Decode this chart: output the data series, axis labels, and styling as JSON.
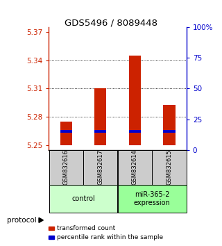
{
  "title": "GDS5496 / 8089448",
  "samples": [
    "GSM832616",
    "GSM832617",
    "GSM832614",
    "GSM832615"
  ],
  "red_values": [
    5.275,
    5.31,
    5.345,
    5.293
  ],
  "blue_values": [
    5.265,
    5.265,
    5.265,
    5.265
  ],
  "baseline": 5.25,
  "ylim_left": [
    5.245,
    5.375
  ],
  "yticks_left": [
    5.25,
    5.28,
    5.31,
    5.34,
    5.37
  ],
  "ylim_right": [
    0,
    100
  ],
  "yticks_right": [
    0,
    25,
    50,
    75,
    100
  ],
  "ytick_labels_right": [
    "0",
    "25",
    "50",
    "75",
    "100%"
  ],
  "bar_width": 0.35,
  "red_color": "#cc2200",
  "blue_color": "#0000cc",
  "sample_box_color": "#cccccc",
  "group1_color": "#ccffcc",
  "group2_color": "#99ff99",
  "legend_red": "transformed count",
  "legend_blue": "percentile rank within the sample",
  "protocol_label": "protocol",
  "group1_label": "control",
  "group2_label": "miR-365-2\nexpression"
}
